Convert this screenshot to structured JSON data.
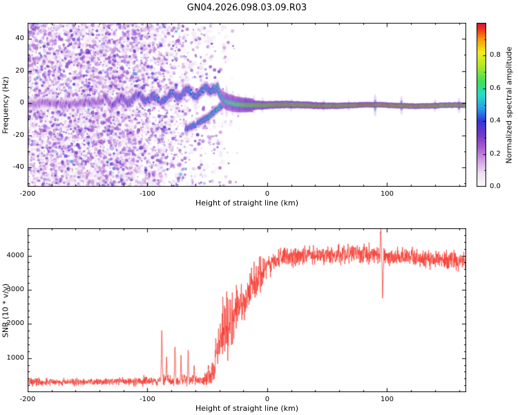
{
  "title": "GN04.2026.098.03.09.R03",
  "chart_data": [
    {
      "type": "heatmap",
      "panel": "spectrogram",
      "xlabel": "Height of straight line (km)",
      "ylabel": "Frequency (Hz)",
      "xlim": [
        -200,
        166
      ],
      "ylim": [
        -52,
        50
      ],
      "xticks": [
        -200,
        -100,
        0,
        100
      ],
      "xtick_minor_step": 20,
      "yticks": [
        -40,
        -20,
        0,
        20,
        40
      ],
      "ytick_minor_step": 10,
      "colorbar": {
        "label": "Normalized spectral amplitude",
        "ticks": [
          0.0,
          0.2,
          0.4,
          0.6,
          0.8
        ],
        "range": [
          0,
          1
        ]
      },
      "colormap": [
        [
          0.0,
          "#fdfafd"
        ],
        [
          0.08,
          "#efdff4"
        ],
        [
          0.16,
          "#cfa0e4"
        ],
        [
          0.24,
          "#a85ad0"
        ],
        [
          0.32,
          "#7038c8"
        ],
        [
          0.4,
          "#3434dc"
        ],
        [
          0.48,
          "#28a0e8"
        ],
        [
          0.56,
          "#28dcc8"
        ],
        [
          0.64,
          "#3ce05c"
        ],
        [
          0.74,
          "#b4e824"
        ],
        [
          0.82,
          "#f0ee18"
        ],
        [
          0.9,
          "#f89c08"
        ],
        [
          0.96,
          "#f03818"
        ],
        [
          1.0,
          "#d4104c"
        ]
      ],
      "main_ridge": [
        [
          -200,
          -1.0,
          0.3
        ],
        [
          -185,
          0.5,
          0.28
        ],
        [
          -170,
          -1.0,
          0.3
        ],
        [
          -155,
          0.5,
          0.3
        ],
        [
          -142,
          1.0,
          0.32
        ],
        [
          -130,
          1.5,
          0.34
        ],
        [
          -120,
          2.5,
          0.38
        ],
        [
          -110,
          2.0,
          0.42
        ],
        [
          -100,
          3.5,
          0.45
        ],
        [
          -92,
          3.0,
          0.46
        ],
        [
          -84,
          4.5,
          0.48
        ],
        [
          -76,
          4.0,
          0.5
        ],
        [
          -68,
          5.5,
          0.5
        ],
        [
          -60,
          6.5,
          0.52
        ],
        [
          -54,
          8.0,
          0.54
        ],
        [
          -48,
          9.5,
          0.55
        ],
        [
          -44,
          10.0,
          0.58
        ],
        [
          -41,
          8.0,
          0.6
        ],
        [
          -39,
          5.0,
          0.62
        ],
        [
          -37,
          2.5,
          0.66
        ],
        [
          -34,
          1.0,
          0.72
        ],
        [
          -30,
          0.2,
          0.78
        ],
        [
          -25,
          -0.5,
          0.82
        ],
        [
          -18,
          -0.8,
          0.86
        ],
        [
          -10,
          -1.0,
          0.9
        ],
        [
          0,
          -1.2,
          0.94
        ],
        [
          20,
          -1.2,
          0.95
        ],
        [
          45,
          -1.3,
          0.95
        ],
        [
          70,
          -1.3,
          0.95
        ],
        [
          90,
          -1.3,
          0.96
        ],
        [
          112,
          -1.4,
          0.95
        ],
        [
          135,
          -1.5,
          0.93
        ],
        [
          166,
          -1.5,
          0.93
        ]
      ],
      "lower_branch": [
        [
          -68,
          -16.0,
          0.45
        ],
        [
          -62,
          -14.0,
          0.5
        ],
        [
          -56,
          -11.5,
          0.52
        ],
        [
          -50,
          -9.0,
          0.55
        ],
        [
          -46,
          -6.5,
          0.58
        ],
        [
          -42,
          -4.0,
          0.6
        ],
        [
          -39,
          -2.0,
          0.62
        ],
        [
          -37,
          -1.0,
          0.62
        ]
      ],
      "flares": [
        [
          -34,
          10,
          0.5
        ],
        [
          -29,
          8,
          0.48
        ],
        [
          -24,
          7,
          0.45
        ],
        [
          -18,
          6,
          0.42
        ],
        [
          -11,
          6,
          0.42
        ],
        [
          -4,
          5,
          0.45
        ],
        [
          20,
          4,
          0.5
        ],
        [
          47,
          4,
          0.45
        ],
        [
          68,
          3.5,
          0.45
        ],
        [
          90,
          7,
          0.6
        ],
        [
          112,
          6,
          0.55
        ],
        [
          140,
          4,
          0.5
        ],
        [
          160,
          5,
          0.5
        ]
      ],
      "noise_field": {
        "x_range": [
          -200,
          -22
        ],
        "count": 5200,
        "haze_count": 900
      }
    },
    {
      "type": "line",
      "panel": "snr",
      "xlabel": "Height of straight line (km)",
      "ylabel": "SNR (10 * v/v)",
      "xlim": [
        -200,
        166
      ],
      "ylim": [
        0,
        4800
      ],
      "xticks": [
        -200,
        -100,
        0,
        100
      ],
      "xtick_minor_step": 20,
      "yticks": [
        1000,
        2000,
        3000,
        4000
      ],
      "ytick_minor_step": 200,
      "line_color": "#f53c32",
      "envelope": [
        [
          -200,
          300,
          110
        ],
        [
          -150,
          300,
          110
        ],
        [
          -120,
          310,
          120
        ],
        [
          -100,
          330,
          140
        ],
        [
          -80,
          350,
          160
        ],
        [
          -65,
          360,
          180
        ],
        [
          -55,
          350,
          150
        ],
        [
          -48,
          450,
          400
        ],
        [
          -44,
          800,
          700
        ],
        [
          -40,
          1400,
          1100
        ],
        [
          -36,
          1800,
          1400
        ],
        [
          -30,
          2100,
          1400
        ],
        [
          -26,
          2300,
          1200
        ],
        [
          -22,
          2600,
          900
        ],
        [
          -16,
          3000,
          800
        ],
        [
          -10,
          3300,
          600
        ],
        [
          -4,
          3600,
          450
        ],
        [
          0,
          3750,
          350
        ],
        [
          10,
          3900,
          300
        ],
        [
          30,
          4000,
          300
        ],
        [
          60,
          4050,
          300
        ],
        [
          90,
          4050,
          300
        ],
        [
          105,
          3950,
          300
        ],
        [
          130,
          3900,
          280
        ],
        [
          166,
          3820,
          300
        ]
      ],
      "spikes": [
        [
          -88,
          1750,
          0.5
        ],
        [
          -84,
          1050,
          0.4
        ],
        [
          -77,
          1350,
          0.45
        ],
        [
          -72,
          950,
          0.4
        ],
        [
          -66,
          1300,
          0.45
        ],
        [
          -61,
          850,
          0.4
        ],
        [
          94.7,
          4750,
          0.5
        ],
        [
          96.3,
          2850,
          0.5
        ]
      ]
    }
  ]
}
